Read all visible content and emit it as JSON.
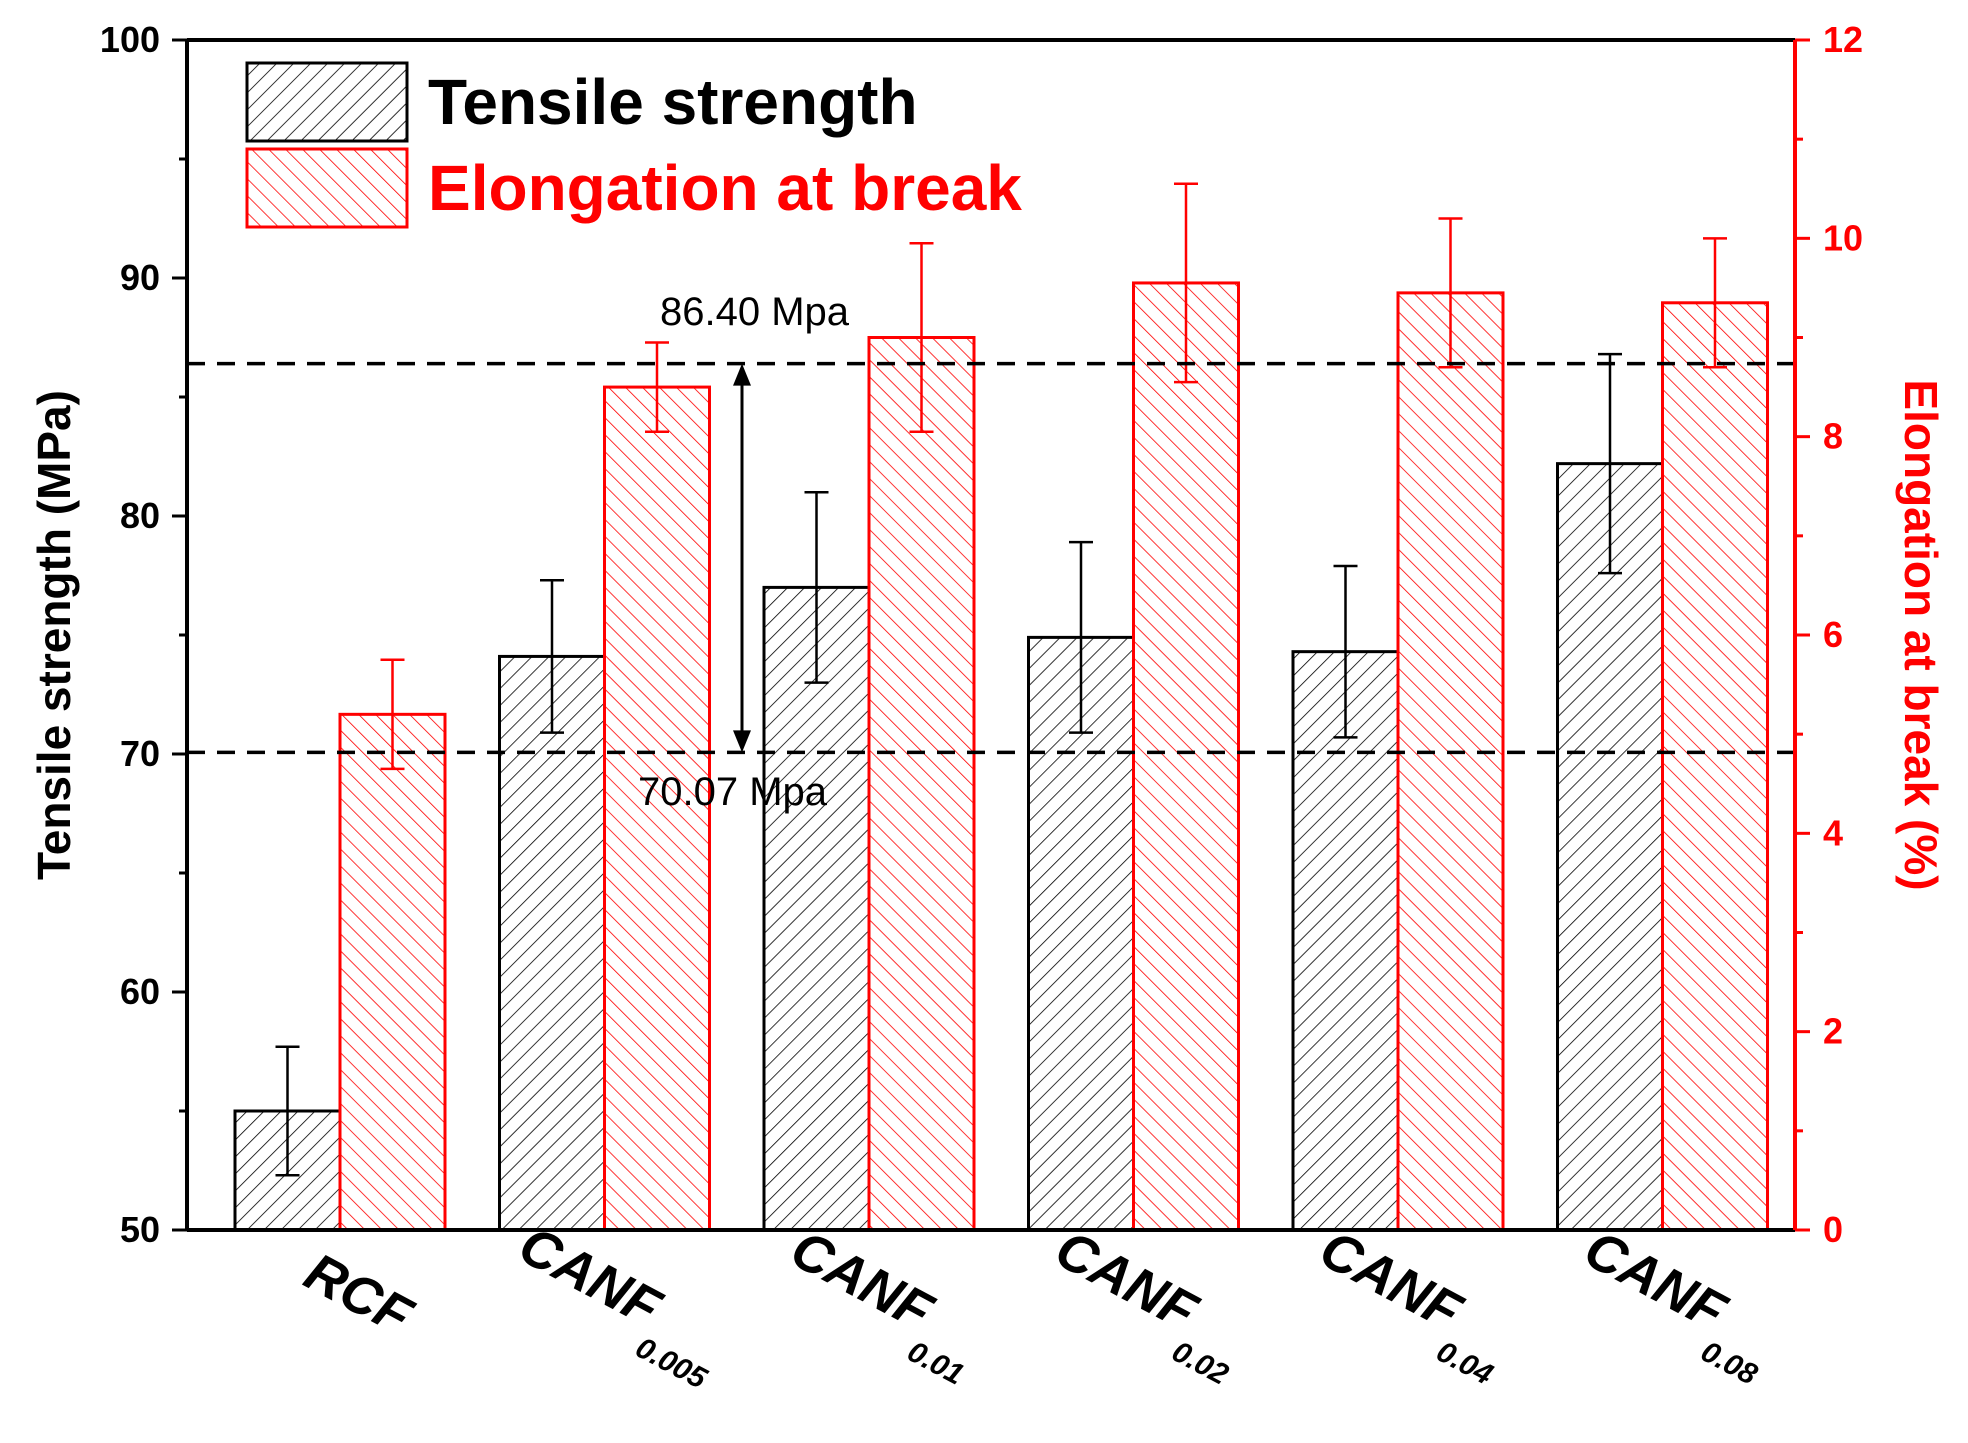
{
  "chart_data": {
    "type": "bar",
    "categories": [
      "RCF",
      "CANF",
      "CANF",
      "CANF",
      "CANF",
      "CANF"
    ],
    "category_subscripts": [
      "",
      "0.005",
      "0.01",
      "0.02",
      "0.04",
      "0.08"
    ],
    "series": [
      {
        "name": "Tensile strength",
        "axis": "left",
        "color": "#000000",
        "values": [
          55.0,
          74.1,
          77.0,
          74.9,
          74.3,
          82.2
        ],
        "error": [
          2.7,
          3.2,
          4.0,
          4.0,
          3.6,
          4.6
        ]
      },
      {
        "name": "Elongation at break",
        "axis": "right",
        "color": "#ff0000",
        "values": [
          5.2,
          8.5,
          9.0,
          9.55,
          9.45,
          9.35
        ],
        "error": [
          0.55,
          0.45,
          0.95,
          1.0,
          0.75,
          0.65
        ]
      }
    ],
    "ylabel": "Tensile strength (MPa)",
    "y2label": "Elongation at break (%)",
    "ylim": [
      50,
      100
    ],
    "y2lim": [
      0,
      12
    ],
    "yticks": [
      50,
      60,
      70,
      80,
      90,
      100
    ],
    "y2ticks": [
      0,
      2,
      4,
      6,
      8,
      10,
      12
    ],
    "reference_lines": [
      {
        "value": 86.4,
        "label": "86.40 Mpa"
      },
      {
        "value": 70.07,
        "label": "70.07 Mpa"
      }
    ],
    "legend_position": "top-left",
    "accent_red": "#ff0000"
  }
}
